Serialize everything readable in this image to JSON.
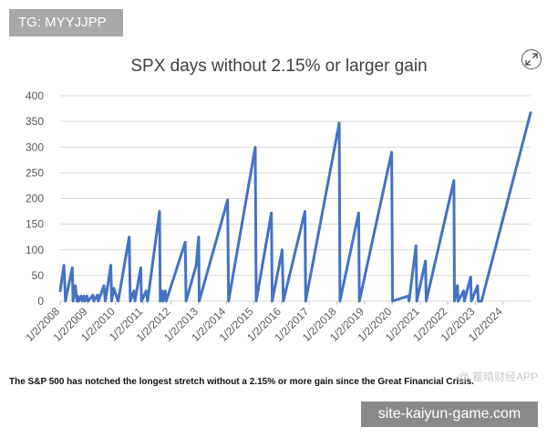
{
  "overlays": {
    "tag_badge": "TG: MYYJJPP",
    "site_banner": "site-kaiyun-game.com",
    "watermark": "@ 瞿晴财经APP"
  },
  "icons": {
    "expand": "expand-arrows-icon"
  },
  "caption": "The S&P 500 has notched the longest stretch without a 2.15% or more gain since the Great Financial Crisis.",
  "colors": {
    "line": "#4472c4",
    "grid": "#d9d9d9",
    "axis_text": "#595959",
    "title": "#404040"
  },
  "chart_data": {
    "type": "line",
    "title": "SPX days without 2.15% or larger gain",
    "xlabel": "",
    "ylabel": "",
    "ylim": [
      0,
      400
    ],
    "yticks": [
      0,
      50,
      100,
      150,
      200,
      250,
      300,
      350,
      400
    ],
    "xlim": [
      "2008-01-02",
      "2024-12-31"
    ],
    "xticks": [
      "1/2/2008",
      "1/2/2009",
      "1/2/2010",
      "1/2/2011",
      "1/2/2012",
      "1/2/2013",
      "1/2/2014",
      "1/2/2015",
      "1/2/2016",
      "1/2/2017",
      "1/2/2018",
      "1/2/2019",
      "1/2/2020",
      "1/2/2021",
      "1/2/2022",
      "1/2/2023",
      "1/2/2024"
    ],
    "grid": true,
    "legend": "none",
    "series": [
      {
        "name": "",
        "color": "#4472c4",
        "points": [
          [
            "2008-01-02",
            20
          ],
          [
            "2008-02-20",
            70
          ],
          [
            "2008-03-12",
            0
          ],
          [
            "2008-04-15",
            25
          ],
          [
            "2008-06-10",
            65
          ],
          [
            "2008-06-20",
            0
          ],
          [
            "2008-07-20",
            30
          ],
          [
            "2008-08-10",
            0
          ],
          [
            "2008-08-20",
            10
          ],
          [
            "2008-09-05",
            0
          ],
          [
            "2008-10-05",
            10
          ],
          [
            "2008-10-20",
            0
          ],
          [
            "2008-11-10",
            10
          ],
          [
            "2008-11-25",
            0
          ],
          [
            "2008-12-20",
            10
          ],
          [
            "2009-01-05",
            0
          ],
          [
            "2009-03-10",
            12
          ],
          [
            "2009-03-20",
            0
          ],
          [
            "2009-05-10",
            12
          ],
          [
            "2009-05-20",
            0
          ],
          [
            "2009-08-01",
            30
          ],
          [
            "2009-08-20",
            0
          ],
          [
            "2009-11-01",
            70
          ],
          [
            "2009-11-10",
            0
          ],
          [
            "2009-12-10",
            25
          ],
          [
            "2010-02-05",
            0
          ],
          [
            "2010-07-01",
            125
          ],
          [
            "2010-07-15",
            0
          ],
          [
            "2010-09-01",
            20
          ],
          [
            "2010-09-15",
            0
          ],
          [
            "2010-12-01",
            65
          ],
          [
            "2010-12-10",
            0
          ],
          [
            "2011-02-10",
            20
          ],
          [
            "2011-03-01",
            0
          ],
          [
            "2011-08-05",
            175
          ],
          [
            "2011-08-15",
            0
          ],
          [
            "2011-09-10",
            20
          ],
          [
            "2011-09-20",
            0
          ],
          [
            "2011-10-20",
            20
          ],
          [
            "2011-11-01",
            0
          ],
          [
            "2012-07-10",
            115
          ],
          [
            "2012-07-20",
            0
          ],
          [
            "2012-12-01",
            70
          ],
          [
            "2013-01-02",
            125
          ],
          [
            "2013-01-10",
            0
          ],
          [
            "2014-01-20",
            197
          ],
          [
            "2014-02-01",
            0
          ],
          [
            "2015-01-20",
            300
          ],
          [
            "2015-02-01",
            0
          ],
          [
            "2015-08-20",
            172
          ],
          [
            "2015-09-01",
            0
          ],
          [
            "2016-01-10",
            100
          ],
          [
            "2016-01-25",
            0
          ],
          [
            "2016-11-05",
            175
          ],
          [
            "2016-11-15",
            0
          ],
          [
            "2018-02-01",
            347
          ],
          [
            "2018-02-10",
            0
          ],
          [
            "2018-10-15",
            172
          ],
          [
            "2018-10-25",
            0
          ],
          [
            "2019-12-25",
            290
          ],
          [
            "2020-01-05",
            0
          ],
          [
            "2020-08-01",
            10
          ],
          [
            "2020-08-10",
            0
          ],
          [
            "2020-11-10",
            108
          ],
          [
            "2020-11-20",
            0
          ],
          [
            "2021-03-15",
            78
          ],
          [
            "2021-03-25",
            0
          ],
          [
            "2022-03-25",
            235
          ],
          [
            "2022-04-01",
            0
          ],
          [
            "2022-05-10",
            30
          ],
          [
            "2022-05-20",
            0
          ],
          [
            "2022-08-01",
            20
          ],
          [
            "2022-08-10",
            0
          ],
          [
            "2022-11-01",
            47
          ],
          [
            "2022-11-10",
            0
          ],
          [
            "2023-02-01",
            30
          ],
          [
            "2023-02-10",
            0
          ],
          [
            "2023-03-25",
            0
          ],
          [
            "2024-12-31",
            367
          ]
        ]
      }
    ]
  }
}
